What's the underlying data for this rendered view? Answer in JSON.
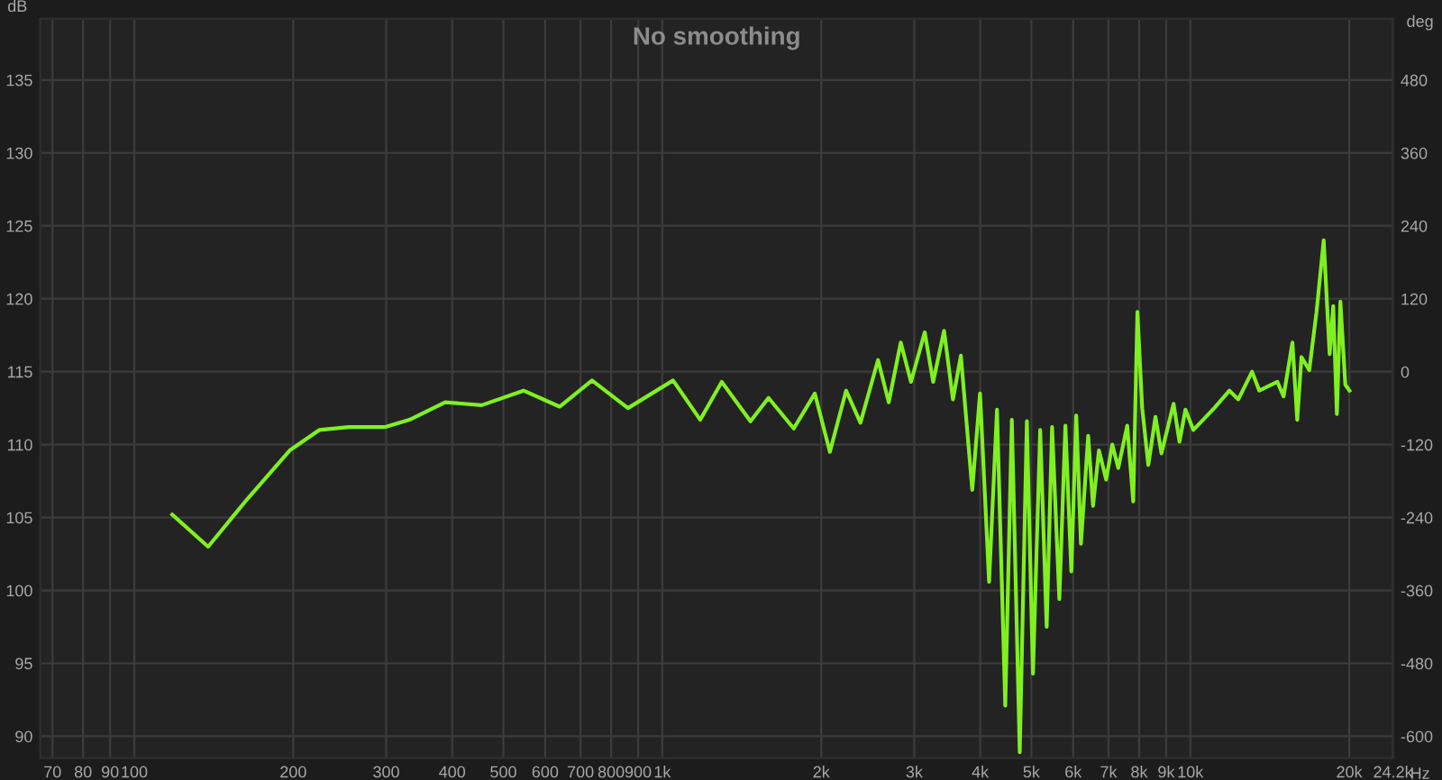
{
  "chart_data": {
    "type": "line",
    "title": "No smoothing",
    "xlabel": "Hz",
    "ylabel": "dB",
    "y2label": "deg",
    "log": "x",
    "grid": true,
    "legend": false,
    "marker": "none",
    "line_style": "solid",
    "x": [
      118,
      138,
      164,
      197,
      224,
      255,
      298,
      332,
      388,
      455,
      546,
      639,
      736,
      861,
      1048,
      1180,
      1296,
      1469,
      1589,
      1774,
      1945,
      2077,
      2229,
      2373,
      2562,
      2685,
      2829,
      2958,
      3141,
      3258,
      3417,
      3552,
      3677,
      3864,
      3997,
      4158,
      4304,
      4462,
      4592,
      4753,
      4903,
      5035,
      5196,
      5345,
      5473,
      5649,
      5800,
      5952,
      6081,
      6207,
      6406,
      6543,
      6714,
      6928,
      7116,
      7304,
      7595,
      7796,
      7940,
      8107,
      8327,
      8590,
      8818,
      9296,
      9539,
      9790,
      10135,
      11100,
      11860,
      12330,
      13090,
      13510,
      14620,
      15020,
      15610,
      15940,
      16240,
      16800,
      17340,
      17890,
      18360,
      18650,
      18950,
      19240,
      19660,
      20020
    ],
    "series": [
      {
        "color": "#80f020",
        "values": [
          105.2,
          103.0,
          106.3,
          109.6,
          111.0,
          111.2,
          111.2,
          111.7,
          112.9,
          112.7,
          113.7,
          112.6,
          114.4,
          112.5,
          114.4,
          111.7,
          114.3,
          111.6,
          113.2,
          111.1,
          113.5,
          109.5,
          113.7,
          111.5,
          115.8,
          112.9,
          117.0,
          114.3,
          117.7,
          114.3,
          117.8,
          113.1,
          116.1,
          106.9,
          113.5,
          100.6,
          112.4,
          92.1,
          111.7,
          88.9,
          111.6,
          94.3,
          111.0,
          97.5,
          111.2,
          99.4,
          111.3,
          101.3,
          112.0,
          103.2,
          110.6,
          105.8,
          109.6,
          107.6,
          110.0,
          108.4,
          111.3,
          106.1,
          119.1,
          112.5,
          108.6,
          111.9,
          109.4,
          112.8,
          110.2,
          112.4,
          111.0,
          112.5,
          113.7,
          113.1,
          115.0,
          113.7,
          114.3,
          113.3,
          117.0,
          111.7,
          116.0,
          115.1,
          119.1,
          124.0,
          116.2,
          119.5,
          112.1,
          119.8,
          114.1,
          113.7
        ]
      }
    ],
    "xlim": [
      66.4,
      24200
    ],
    "xticks": [
      70,
      80,
      90,
      100,
      200,
      300,
      400,
      500,
      600,
      700,
      800,
      900,
      {
        "value": 1000,
        "label": "1k"
      },
      {
        "value": 2000,
        "label": "2k"
      },
      {
        "value": 3000,
        "label": "3k"
      },
      {
        "value": 4000,
        "label": "4k"
      },
      {
        "value": 5000,
        "label": "5k"
      },
      {
        "value": 6000,
        "label": "6k"
      },
      {
        "value": 7000,
        "label": "7k"
      },
      {
        "value": 8000,
        "label": "8k"
      },
      {
        "value": 9000,
        "label": "9k"
      },
      {
        "value": 10000,
        "label": "10k"
      },
      {
        "value": 20000,
        "label": "20k"
      },
      {
        "value": 24200,
        "label": "24.2k"
      }
    ],
    "ylim": [
      88.5,
      139.2
    ],
    "yticks": [
      90,
      95,
      100,
      105,
      110,
      115,
      120,
      125,
      130,
      135
    ],
    "y2lim": [
      -636,
      581
    ],
    "y2ticks": [
      -600,
      -480,
      -360,
      -240,
      -120,
      0,
      120,
      240,
      360,
      480
    ]
  }
}
